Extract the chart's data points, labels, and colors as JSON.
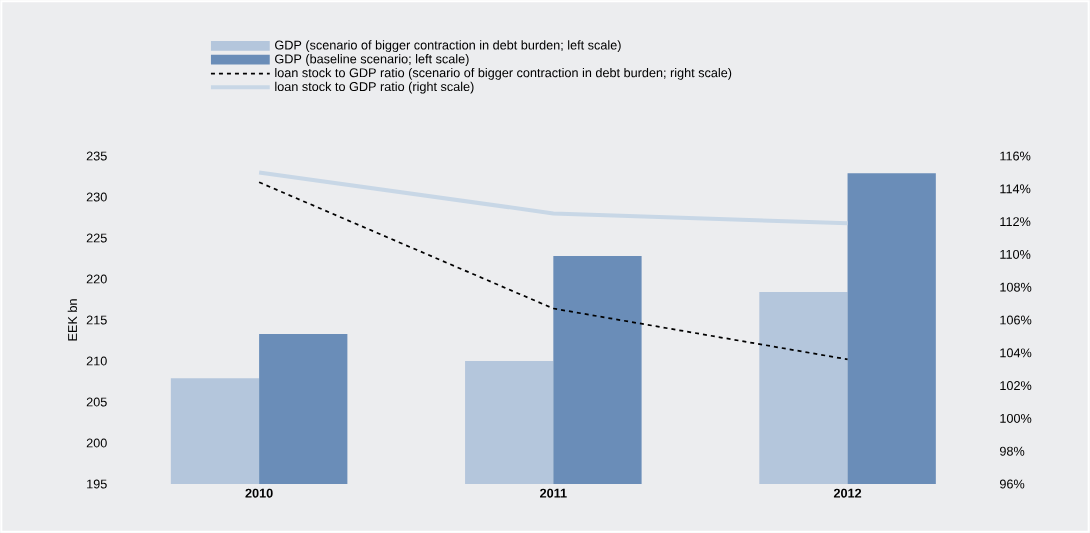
{
  "chart_data": {
    "type": "bar",
    "ylabel": "EEK bn",
    "categories": [
      "2010",
      "2011",
      "2012"
    ],
    "series": [
      {
        "name": "GDP (scenario of bigger contraction in debt burden; left scale)",
        "color": "#b4c6dc",
        "values": [
          207.9,
          210.0,
          218.4
        ]
      },
      {
        "name": "GDP (baseline scenario; left scale)",
        "color": "#6a8db8",
        "values": [
          213.3,
          222.8,
          232.9
        ]
      },
      {
        "name": "loan stock to GDP ratio (scenario of bigger contraction in debt burden; right scale)",
        "type": "line",
        "axis": "y2",
        "color": "#000000",
        "line_style": "dashed",
        "values": [
          114.4,
          106.7,
          103.6
        ]
      },
      {
        "name": "loan stock to GDP ratio (right scale)",
        "type": "line",
        "axis": "y2",
        "color": "#c8d7e6",
        "line_style": "solid",
        "values": [
          115.0,
          112.5,
          111.9
        ]
      }
    ],
    "ylim": [
      195,
      235
    ],
    "yticks": [
      195,
      200,
      205,
      210,
      215,
      220,
      225,
      230,
      235
    ],
    "y2lim": [
      96,
      116
    ],
    "y2ticks": [
      {
        "value": 96,
        "label": "96%"
      },
      {
        "value": 98,
        "label": "98%"
      },
      {
        "value": 100,
        "label": "100%"
      },
      {
        "value": 102,
        "label": "102%"
      },
      {
        "value": 104,
        "label": "104%"
      },
      {
        "value": 106,
        "label": "106%"
      },
      {
        "value": 108,
        "label": "108%"
      },
      {
        "value": 110,
        "label": "110%"
      },
      {
        "value": 112,
        "label": "112%"
      },
      {
        "value": 114,
        "label": "114%"
      },
      {
        "value": 116,
        "label": "116%"
      }
    ],
    "grid": false,
    "legend": "top"
  }
}
